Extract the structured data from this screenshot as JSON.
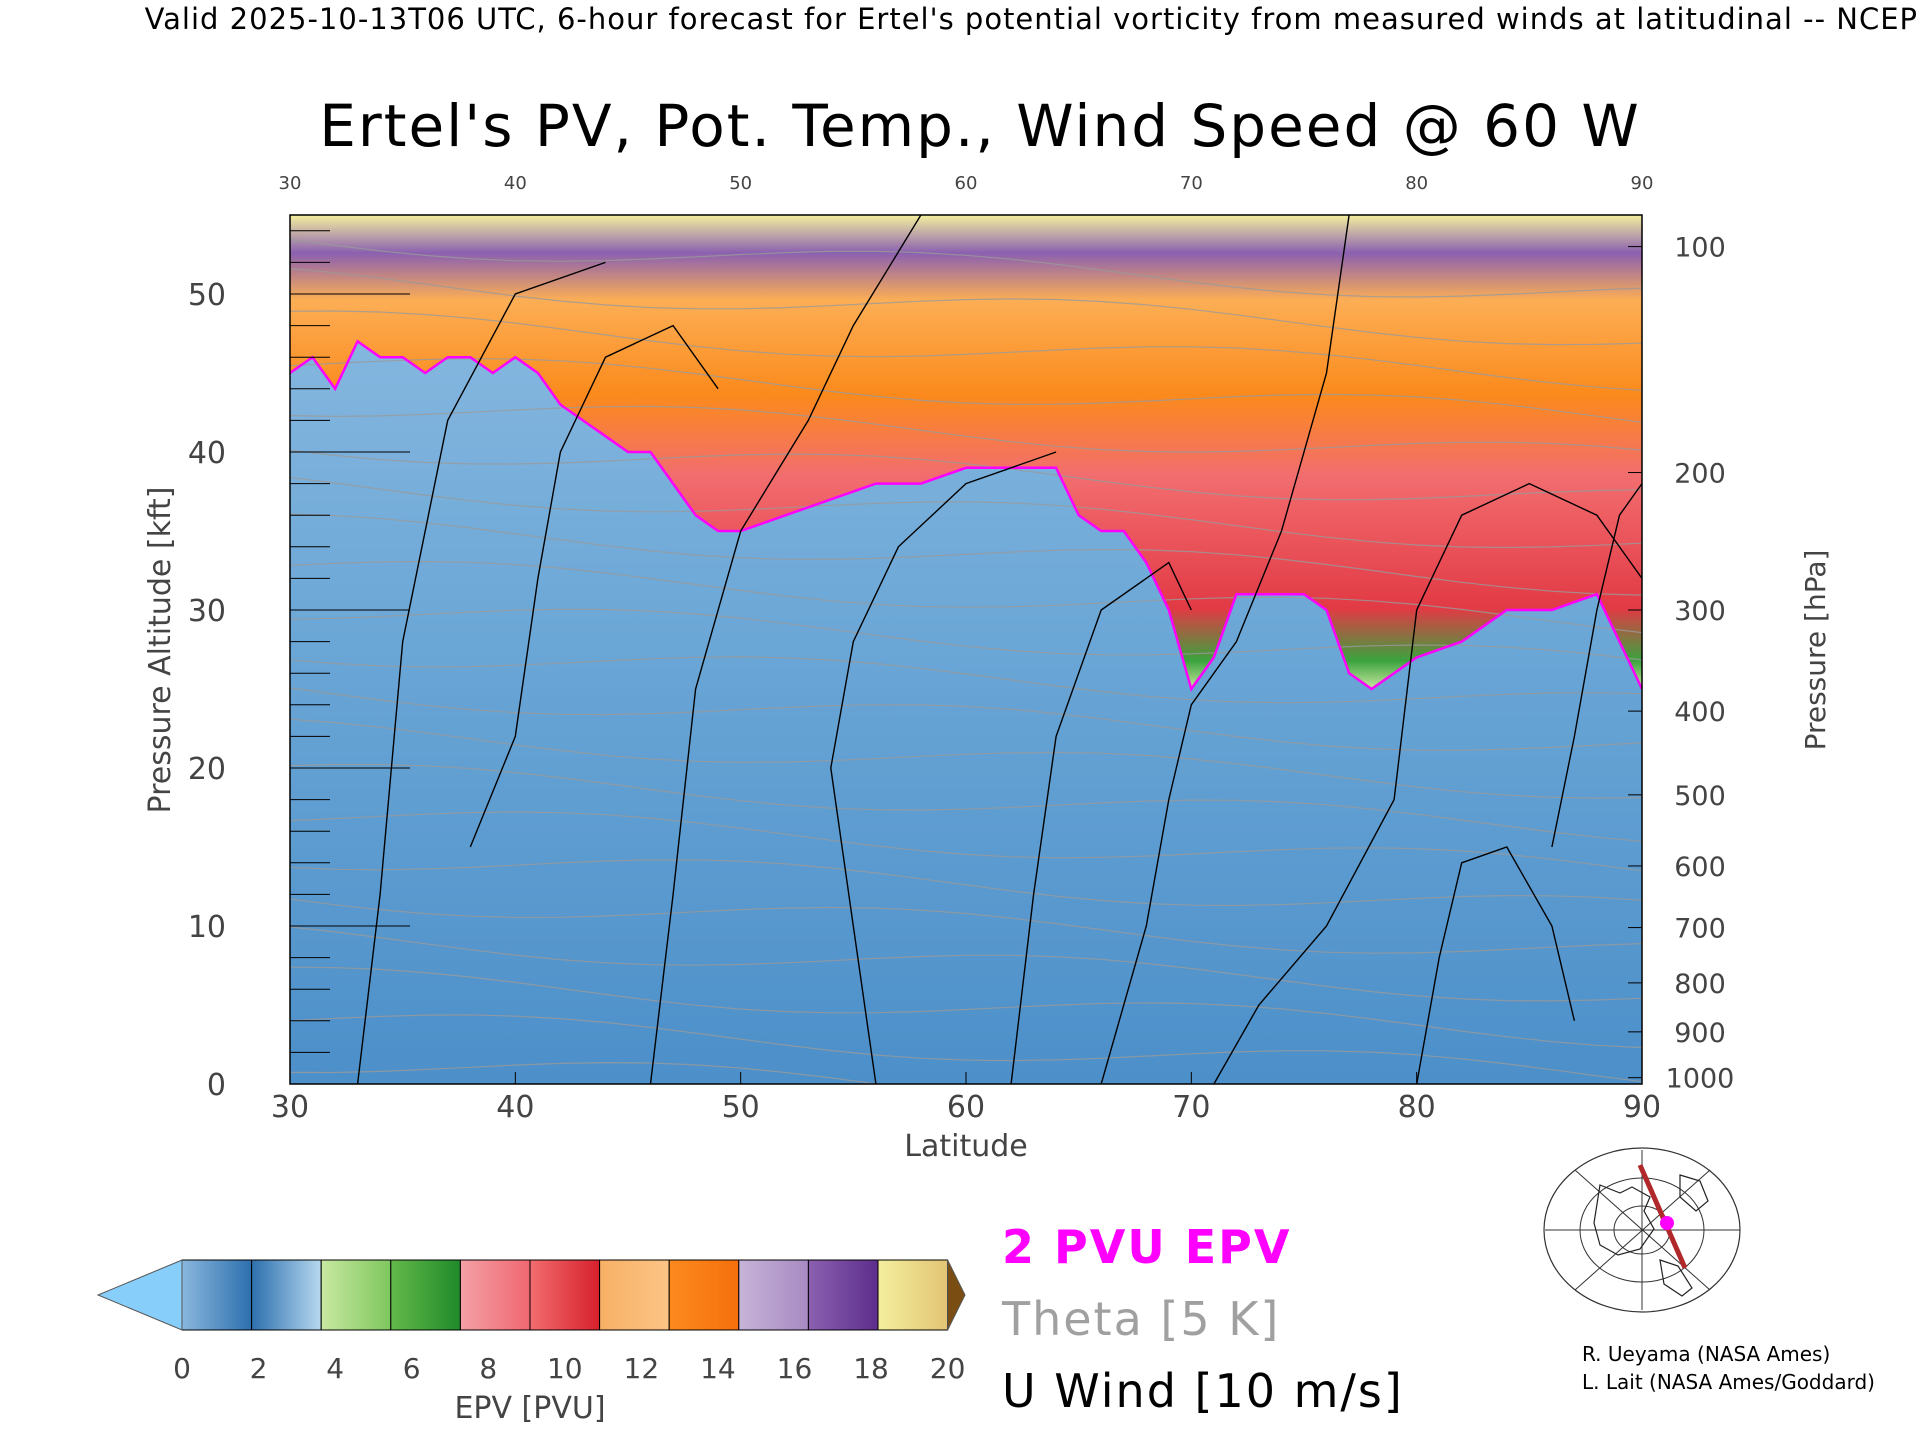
{
  "header": {
    "text": "Valid 2025-10-13T06 UTC, 6-hour forecast for Ertel's potential vorticity from measured winds at latitudinal -- NCEP"
  },
  "chart_data": {
    "type": "heatmap",
    "title": "Ertel's PV, Pot. Temp., Wind Speed @ 60 W",
    "xlabel": "Latitude",
    "ylabel": "Pressure Altitude [kft]",
    "y2label": "Pressure [hPa]",
    "xlim": [
      30,
      90
    ],
    "ylim": [
      0,
      55
    ],
    "x_ticks": [
      30,
      40,
      50,
      60,
      70,
      80,
      90
    ],
    "top_ticks": [
      30,
      40,
      50,
      60,
      70,
      80,
      90
    ],
    "y_ticks": [
      0,
      10,
      20,
      30,
      40,
      50
    ],
    "pressure_ticks": [
      {
        "label": "1000",
        "kft": 0.4
      },
      {
        "label": "900",
        "kft": 3.3
      },
      {
        "label": "800",
        "kft": 6.4
      },
      {
        "label": "700",
        "kft": 9.9
      },
      {
        "label": "600",
        "kft": 13.8
      },
      {
        "label": "500",
        "kft": 18.3
      },
      {
        "label": "400",
        "kft": 23.6
      },
      {
        "label": "300",
        "kft": 30.0
      },
      {
        "label": "200",
        "kft": 38.7
      },
      {
        "label": "100",
        "kft": 53.0
      }
    ],
    "tropopause_2pvu": {
      "latitude": [
        30,
        31,
        32,
        33,
        34,
        35,
        36,
        37,
        38,
        39,
        40,
        41,
        42,
        43,
        44,
        45,
        46,
        47,
        48,
        49,
        50,
        52,
        54,
        56,
        58,
        60,
        62,
        64,
        65,
        66,
        67,
        68,
        69,
        70,
        71,
        72,
        73,
        74,
        75,
        76,
        77,
        78,
        79,
        80,
        82,
        84,
        86,
        88,
        90
      ],
      "altitude_kft": [
        45,
        46,
        44,
        47,
        46,
        46,
        45,
        46,
        46,
        45,
        46,
        45,
        43,
        42,
        41,
        40,
        40,
        38,
        36,
        35,
        35,
        36,
        37,
        38,
        38,
        39,
        39,
        39,
        36,
        35,
        35,
        33,
        30,
        25,
        27,
        31,
        31,
        31,
        31,
        30,
        26,
        25,
        26,
        27,
        28,
        30,
        30,
        31,
        25
      ]
    },
    "colorbar": {
      "label": "EPV [PVU]",
      "tick_labels": [
        0,
        2,
        4,
        6,
        8,
        10,
        12,
        14,
        16,
        18,
        20
      ],
      "extend": "both",
      "under_color": "#87cefa",
      "over_color": "#7a4e12",
      "bins": [
        [
          "#8ab7dd",
          "#2d6fae"
        ],
        [
          "#2d6fae",
          "#b7d9ef"
        ],
        [
          "#c8e8a0",
          "#7ec75e"
        ],
        [
          "#64b94a",
          "#1f8a2a"
        ],
        [
          "#f4a0a6",
          "#f06771"
        ],
        [
          "#f26d6f",
          "#d6202c"
        ],
        [
          "#f7b065",
          "#fcc486"
        ],
        [
          "#fd8a1e",
          "#f56f0c"
        ],
        [
          "#c7b4d8",
          "#a78ac2"
        ],
        [
          "#8b60b0",
          "#5d2e8c"
        ],
        [
          "#f3ef9d",
          "#e2c474"
        ]
      ]
    },
    "legend": {
      "pv_contour": "2 PVU EPV",
      "theta": "Theta [5 K]",
      "wind": "U Wind [10 m/s]"
    },
    "colors": {
      "tropopause": "#ff00ff",
      "theta": "#9a9a9a",
      "wind": "#000000",
      "troposphere": "#5b9bd0",
      "stratosphere_low": "#3aa33e",
      "stratosphere_mid": "#e23a45",
      "stratosphere_high": "#fb8a1c"
    }
  },
  "credits": {
    "line1": "R. Ueyama (NASA Ames)",
    "line2": "L. Lait (NASA Ames/Goddard)"
  },
  "inset_map": {
    "cross_section_color": "#b0282a",
    "marker_color": "#ff00ff"
  }
}
